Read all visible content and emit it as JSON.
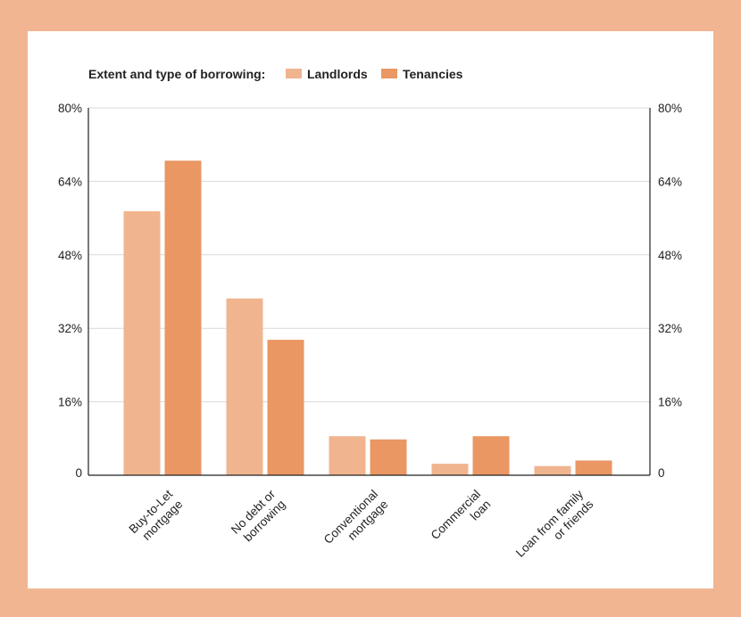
{
  "colors": {
    "frame": "#f2b591",
    "landlords": "#f0b48f",
    "tenancies": "#ea9764",
    "grid": "#d9d9d9",
    "axis": "#222222"
  },
  "chart_data": {
    "type": "bar",
    "legend_title": "Extent and type of borrowing:",
    "categories": [
      [
        "Buy-to-Let",
        "mortgage"
      ],
      [
        "No debt or",
        "borrowing"
      ],
      [
        "Conventional",
        "mortgage"
      ],
      [
        "Commercial",
        "loan"
      ],
      [
        "Loan from family",
        "or friends"
      ]
    ],
    "series": [
      {
        "name": "Landlords",
        "values": [
          57.5,
          38.5,
          8.5,
          2.5,
          2.0
        ]
      },
      {
        "name": "Tenancies",
        "values": [
          68.5,
          29.5,
          7.8,
          8.5,
          3.2
        ]
      }
    ],
    "yticks": [
      {
        "value": 0,
        "label": "0"
      },
      {
        "value": 16,
        "label": "16%"
      },
      {
        "value": 32,
        "label": "32%"
      },
      {
        "value": 48,
        "label": "48%"
      },
      {
        "value": 64,
        "label": "64%"
      },
      {
        "value": 80,
        "label": "80%"
      }
    ],
    "ylim": [
      0,
      80
    ],
    "grid": true,
    "legend_position": "top-left",
    "title": "",
    "xlabel": "",
    "ylabel": ""
  }
}
